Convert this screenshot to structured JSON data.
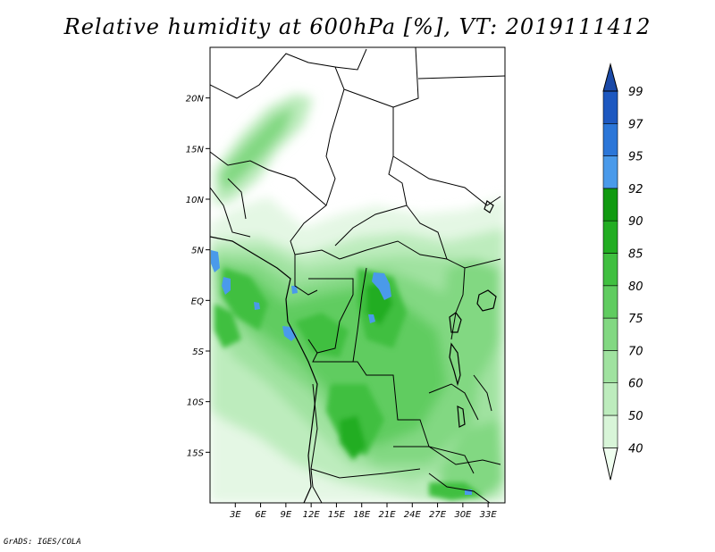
{
  "title": "Relative humidity at 600hPa [%], VT: 2019111412",
  "footer": "GrADS: IGES/COLA",
  "map": {
    "lon_range_deg": [
      0,
      35
    ],
    "lat_range_deg": [
      -20,
      25
    ],
    "x_ticks": [
      "3E",
      "6E",
      "9E",
      "12E",
      "15E",
      "18E",
      "21E",
      "24E",
      "27E",
      "30E",
      "33E"
    ],
    "y_ticks": [
      "20N",
      "15N",
      "10N",
      "5N",
      "EQ",
      "5S",
      "10S",
      "15S"
    ]
  },
  "colorbar": {
    "levels": [
      "40",
      "50",
      "60",
      "70",
      "75",
      "80",
      "85",
      "90",
      "92",
      "95",
      "97",
      "99"
    ],
    "colors": [
      "#f0fff0",
      "#d8f5d8",
      "#bdecbd",
      "#a0e2a0",
      "#82d882",
      "#60cc60",
      "#40bf40",
      "#22ad22",
      "#109a10",
      "#4a9aea",
      "#2b76d8",
      "#1d58c0",
      "#1b4aa8"
    ]
  }
}
